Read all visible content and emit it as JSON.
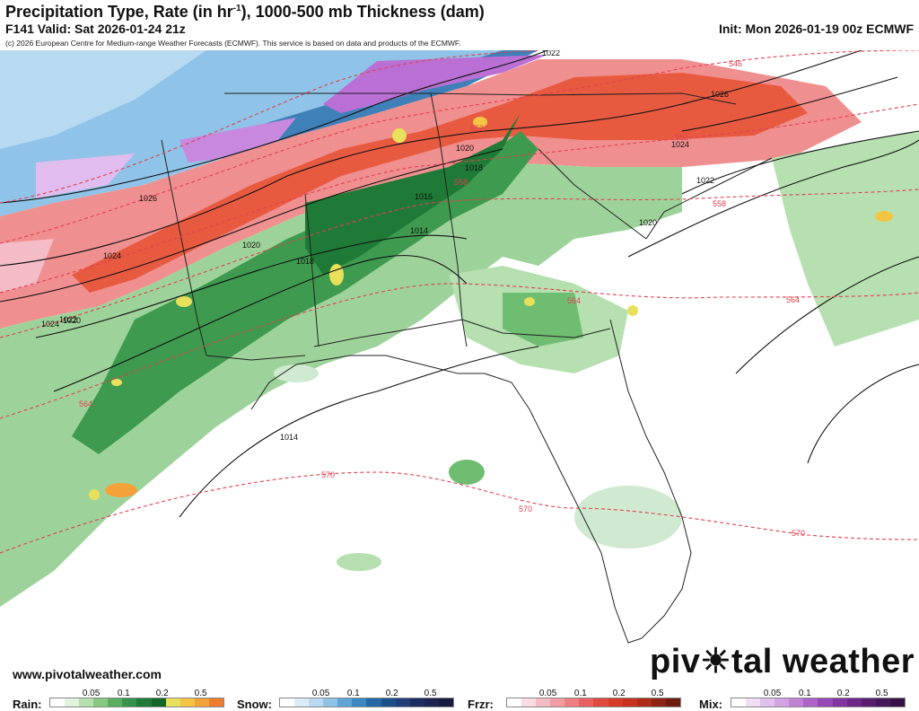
{
  "header": {
    "title_main": "Precipitation Type, Rate (in hr",
    "title_sup": "-1",
    "title_rest": "), 1000-500 mb Thickness (dam)",
    "valid": "F141 Valid: Sat 2026-01-24 21z",
    "init": "Init: Mon 2026-01-19 00z ECMWF",
    "copyright": "(c) 2026 European Centre for Medium-range Weather Forecasts (ECMWF). This service is based on data and products of the ECMWF."
  },
  "footer": {
    "site": "www.pivotalweather.com",
    "logo_a": "piv",
    "logo_b": "tal weather"
  },
  "pressure_labels": [
    "1022",
    "1026",
    "1020",
    "1024",
    "1018",
    "1016",
    "1014",
    "1020",
    "1018",
    "1026",
    "1024",
    "1022",
    "1020",
    "1014",
    "1024",
    "1022",
    "1020"
  ],
  "thickness_labels": [
    "546",
    "552",
    "558",
    "564",
    "570",
    "570",
    "570",
    "564",
    "564",
    "558",
    "552"
  ],
  "legend": {
    "rain": {
      "label": "Rain:",
      "ticks": [
        "0.05",
        "0.1",
        "0.2",
        "0.5"
      ],
      "colors": [
        "#ffffff",
        "#e3f3e0",
        "#b6e0b0",
        "#86c985",
        "#5aaf5f",
        "#36944a",
        "#1e7a36",
        "#136628",
        "#e8e05a",
        "#f4c542",
        "#f4a13a",
        "#ef7d2e"
      ]
    },
    "snow": {
      "label": "Snow:",
      "ticks": [
        "0.05",
        "0.1",
        "0.2",
        "0.5"
      ],
      "colors": [
        "#ffffff",
        "#dcecf7",
        "#b9daf0",
        "#8dc3e6",
        "#5fa6d6",
        "#3b88c2",
        "#2468a8",
        "#1b4f8a",
        "#233c7a",
        "#1a2d60",
        "#1c2352",
        "#161b40"
      ]
    },
    "frzr": {
      "label": "Frzr:",
      "ticks": [
        "0.05",
        "0.1",
        "0.2",
        "0.5"
      ],
      "colors": [
        "#ffffff",
        "#f9dde3",
        "#f4bcc6",
        "#f29ca6",
        "#ee7e82",
        "#ea6060",
        "#e24a40",
        "#d63a28",
        "#c8321e",
        "#b02a18",
        "#8e2414",
        "#6e1c10"
      ]
    },
    "mix": {
      "label": "Mix:",
      "ticks": [
        "0.05",
        "0.1",
        "0.2",
        "0.5"
      ],
      "colors": [
        "#ffffff",
        "#f0def5",
        "#e2c0ec",
        "#d3a2e2",
        "#c182d6",
        "#ad63c8",
        "#9748b6",
        "#8234a0",
        "#6e2788",
        "#5a1e70",
        "#47185a",
        "#361246"
      ]
    }
  }
}
